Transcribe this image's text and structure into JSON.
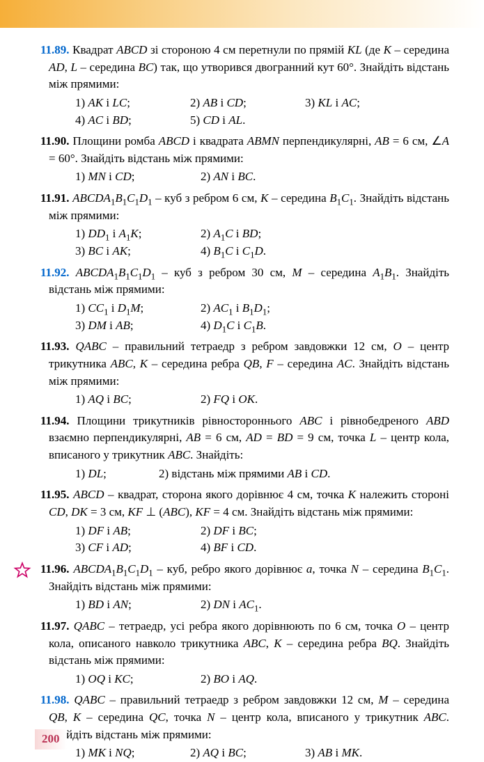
{
  "page_number": "200",
  "colors": {
    "number_blue": "#0066cc",
    "number_black": "#000000",
    "star_outline": "#cc0066",
    "star_fill": "#ffffff",
    "page_num_color": "#bb3355"
  },
  "problems": [
    {
      "num": "11.89.",
      "blue": true,
      "text": "Квадрат <i>ABCD</i> зі стороною 4 см перетнули по прямій <i>KL</i> (де <i>K</i> – середина <i>AD</i>, <i>L</i> – середина <i>BC</i>) так, що утворився двогранний кут 60°. Знайдіть відстань між прямими:",
      "items": [
        [
          "1) <i>AK</i> і <i>LC</i>;",
          "2) <i>AB</i> і <i>CD</i>;",
          "3) <i>KL</i> і <i>AC</i>;"
        ],
        [
          "4) <i>AC</i> і <i>BD</i>;",
          "5) <i>CD</i> і <i>AL</i>."
        ]
      ],
      "cols": 3
    },
    {
      "num": "11.90.",
      "blue": false,
      "text": "Площини ромба <i>ABCD</i> і квадрата <i>ABMN</i> перпендикулярні, <i>AB</i> = 6 см, ∠<i>A</i> = 60°. Знайдіть відстань між прямими:",
      "items": [
        [
          "1) <i>MN</i> і <i>CD</i>;",
          "2) <i>AN</i> і <i>BC</i>."
        ]
      ],
      "cols": 2
    },
    {
      "num": "11.91.",
      "blue": false,
      "text": "<i>ABCDA</i><sub>1</sub><i>B</i><sub>1</sub><i>C</i><sub>1</sub><i>D</i><sub>1</sub> – куб з ребром 6 см, <i>K</i> – середина <i>B</i><sub>1</sub><i>C</i><sub>1</sub>. Знайдіть відстань між прямими:",
      "items": [
        [
          "1) <i>DD</i><sub>1</sub> і <i>A</i><sub>1</sub><i>K</i>;",
          "2) <i>A</i><sub>1</sub><i>C</i> і <i>BD</i>;"
        ],
        [
          "3) <i>BC</i> і <i>AK</i>;",
          "4) <i>B</i><sub>1</sub><i>C</i> і <i>C</i><sub>1</sub><i>D</i>."
        ]
      ],
      "cols": 2
    },
    {
      "num": "11.92.",
      "blue": true,
      "text": "<i>ABCDA</i><sub>1</sub><i>B</i><sub>1</sub><i>C</i><sub>1</sub><i>D</i><sub>1</sub> – куб з ребром 30 см, <i>M</i> – середина <i>A</i><sub>1</sub><i>B</i><sub>1</sub>. Знайдіть відстань між прямими:",
      "items": [
        [
          "1) <i>CC</i><sub>1</sub> і <i>D</i><sub>1</sub><i>M</i>;",
          "2) <i>AC</i><sub>1</sub> і <i>B</i><sub>1</sub><i>D</i><sub>1</sub>;"
        ],
        [
          "3) <i>DM</i> і <i>AB</i>;",
          "4) <i>D</i><sub>1</sub><i>C</i> і <i>C</i><sub>1</sub><i>B</i>."
        ]
      ],
      "cols": 2
    },
    {
      "num": "11.93.",
      "blue": false,
      "text": "<i>QABC</i> – правильний тетраедр з ребром завдовжки 12 см, <i>O</i> – центр трикутника <i>ABC</i>, <i>K</i> – середина ребра <i>QB</i>, <i>F</i> – середина <i>AC</i>. Знайдіть відстань між прямими:",
      "items": [
        [
          "1) <i>AQ</i> і <i>BC</i>;",
          "2) <i>FQ</i> і <i>OK</i>."
        ]
      ],
      "cols": 2
    },
    {
      "num": "11.94.",
      "blue": false,
      "text": "Площини трикутників рівностороннього <i>ABC</i> і рівнобедреного <i>ABD</i> взаємно перпендикулярні, <i>AB</i> = 6 см, <i>AD</i> = <i>BD</i> = 9 см, точка <i>L</i> – центр кола, вписаного у трикутник <i>ABC</i>. Знайдіть:",
      "items": [
        [
          "1) <i>DL</i>;",
          "2) відстань між прямими <i>AB</i> і <i>CD</i>."
        ]
      ],
      "cols": 2,
      "widths": [
        "120px",
        "auto"
      ]
    },
    {
      "num": "11.95.",
      "blue": false,
      "text": "<i>ABCD</i> – квадрат, сторона якого дорівнює 4 см, точка <i>K</i> належить стороні <i>CD</i>, <i>DK</i> = 3 см, <i>KF</i> ⊥ (<i>ABC</i>), <i>KF</i> = 4 см. Знайдіть відстань між прямими:",
      "items": [
        [
          "1) <i>DF</i> і <i>AB</i>;",
          "2) <i>DF</i> і <i>BC</i>;"
        ],
        [
          "3) <i>CF</i> і <i>AD</i>;",
          "4) <i>BF</i> і <i>CD</i>."
        ]
      ],
      "cols": 2
    },
    {
      "num": "11.96.",
      "blue": false,
      "star": true,
      "text": "<i>ABCDA</i><sub>1</sub><i>B</i><sub>1</sub><i>C</i><sub>1</sub><i>D</i><sub>1</sub> – куб, ребро якого дорівнює <i>a</i>, точка <i>N</i> – середина <i>B</i><sub>1</sub><i>C</i><sub>1</sub>. Знайдіть відстань між прямими:",
      "items": [
        [
          "1) <i>BD</i> і <i>AN</i>;",
          "2) <i>DN</i> і <i>AC</i><sub>1</sub>."
        ]
      ],
      "cols": 2
    },
    {
      "num": "11.97.",
      "blue": false,
      "text": "<i>QABC</i> – тетраедр, усі ребра якого дорівнюють по 6 см, точка <i>O</i> – центр кола, описаного навколо трикутника <i>ABC</i>, <i>K</i> – середина ребра <i>BQ</i>. Знайдіть відстань між прямими:",
      "items": [
        [
          "1) <i>OQ</i> і <i>KC</i>;",
          "2) <i>BO</i> і <i>AQ</i>."
        ]
      ],
      "cols": 2
    },
    {
      "num": "11.98.",
      "blue": true,
      "text": "<i>QABC</i> – правильний тетраедр з ребром завдовжки 12 см, <i>M</i> – середина <i>QB</i>, <i>K</i> – середина <i>QC</i>, точка <i>N</i> – центр кола, вписаного у трикутник <i>ABC</i>. Знайдіть відстань між прямими:",
      "items": [
        [
          "1) <i>MK</i> і <i>NQ</i>;",
          "2) <i>AQ</i> і <i>BC</i>;",
          "3) <i>AB</i> і <i>MK</i>."
        ]
      ],
      "cols": 3
    }
  ]
}
